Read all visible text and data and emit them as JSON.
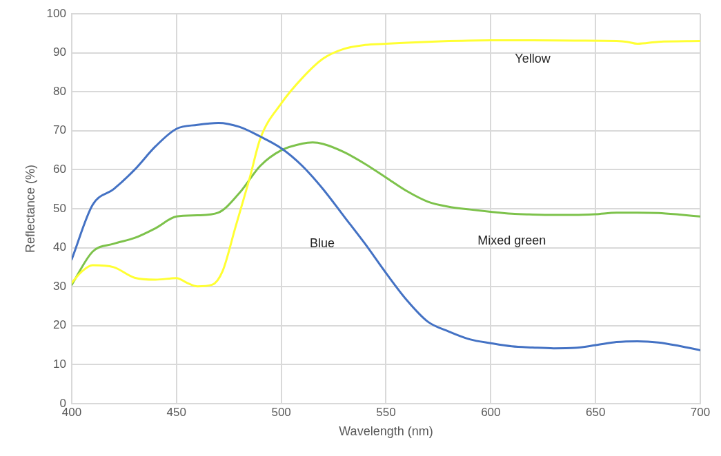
{
  "chart_data": {
    "type": "line",
    "xlabel": "Wavelength (nm)",
    "ylabel": "Reflectance (%)",
    "xlim": [
      400,
      700
    ],
    "xticks": [
      400,
      450,
      500,
      550,
      600,
      650,
      700
    ],
    "ylim": [
      0,
      100
    ],
    "yticks": [
      0,
      10,
      20,
      30,
      40,
      50,
      60,
      70,
      80,
      90,
      100
    ],
    "grid": true,
    "legend": false,
    "marker": "none",
    "line_style": "solid",
    "series": [
      {
        "name": "Blue",
        "color": "#4472c4",
        "x": [
          400,
          410,
          420,
          430,
          440,
          450,
          460,
          470,
          480,
          490,
          500,
          510,
          520,
          530,
          540,
          550,
          560,
          570,
          580,
          590,
          600,
          610,
          620,
          630,
          640,
          650,
          660,
          670,
          680,
          690,
          700
        ],
        "values": [
          37,
          51,
          55,
          60,
          66,
          70.5,
          71.5,
          72,
          71,
          68.5,
          65.5,
          61,
          55,
          48,
          41,
          33.5,
          26.5,
          21,
          18.5,
          16.5,
          15.5,
          14.7,
          14.4,
          14.2,
          14.3,
          15,
          15.8,
          16,
          15.7,
          14.8,
          13.7
        ]
      },
      {
        "name": "Yellow",
        "color": "#ffff33",
        "x": [
          400,
          405,
          410,
          420,
          430,
          440,
          450,
          455,
          460,
          467,
          472,
          478,
          485,
          490,
          500,
          510,
          520,
          530,
          540,
          550,
          560,
          580,
          600,
          620,
          640,
          660,
          665,
          670,
          680,
          700
        ],
        "values": [
          31,
          34,
          35.5,
          35,
          32.3,
          31.8,
          32.2,
          31,
          30.1,
          30.5,
          34,
          45,
          58,
          68,
          77,
          83.5,
          88.5,
          91,
          92,
          92.3,
          92.6,
          93,
          93.2,
          93.2,
          93.1,
          93,
          92.8,
          92.3,
          92.8,
          93
        ]
      },
      {
        "name": "Mixed green",
        "color": "#7dc24b",
        "x": [
          400,
          410,
          420,
          430,
          440,
          450,
          460,
          470,
          480,
          490,
          500,
          510,
          515,
          520,
          530,
          540,
          550,
          560,
          570,
          580,
          590,
          600,
          610,
          620,
          630,
          640,
          650,
          660,
          670,
          680,
          690,
          700
        ],
        "values": [
          30.5,
          39,
          41,
          42.5,
          45,
          48,
          48.3,
          49,
          54,
          61,
          65,
          66.7,
          67,
          66.6,
          64.5,
          61.5,
          58,
          54.5,
          51.8,
          50.5,
          49.8,
          49.2,
          48.7,
          48.5,
          48.4,
          48.4,
          48.6,
          49,
          49,
          48.9,
          48.5,
          48
        ]
      }
    ]
  }
}
